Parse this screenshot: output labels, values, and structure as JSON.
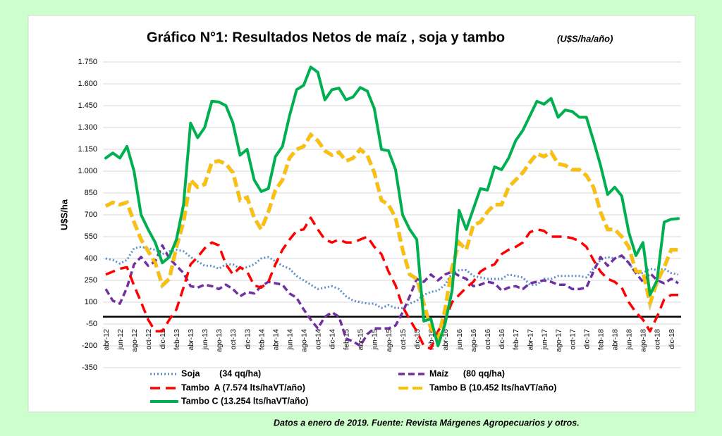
{
  "chart_data": {
    "type": "line",
    "title": "Gráfico N°1: Resultados Netos de maíz , soja y tambo",
    "subtitle": "(U$S/ha/año)",
    "y_label": "U$S/ha",
    "footnote": "Datos a enero de 2019. Fuente: Revista Márgenes Agropecuarios y otros.",
    "categories": [
      "abr-12",
      null,
      "jun-12",
      null,
      "ago-12",
      null,
      "oct-12",
      null,
      "dic-12",
      null,
      "feb-13",
      null,
      "abr-13",
      null,
      "jun-13",
      null,
      "ago-13",
      null,
      "oct-13",
      null,
      "dic-13",
      null,
      "feb-14",
      null,
      "abr-14",
      null,
      "jun-14",
      null,
      "ago-14",
      null,
      "oct-14",
      null,
      "dic-14",
      null,
      "feb-15",
      null,
      "abr-15",
      null,
      "jun-15",
      null,
      "ago-15",
      null,
      "oct-15",
      null,
      "dic-15",
      null,
      "feb-16",
      null,
      "abr-16",
      null,
      "jun-16",
      null,
      "ago-16",
      null,
      "oct-16",
      null,
      "dic-16",
      null,
      "feb-17",
      null,
      "abr-17",
      null,
      "jun-17",
      null,
      "ago-17",
      null,
      "oct-17",
      null,
      "dic-17",
      null,
      "feb-18",
      null,
      "abr-18",
      null,
      "jun-18",
      null,
      "ago-18",
      null,
      "oct-18",
      null,
      "dic-18",
      null
    ],
    "ylim": [
      -350,
      1750
    ],
    "yticks": [
      -350,
      -200,
      -50,
      100,
      250,
      400,
      550,
      700,
      850,
      {
        "value": 1000,
        "label": "1.000"
      },
      {
        "value": 1150,
        "label": "1.150"
      },
      {
        "value": 1300,
        "label": "1.300"
      },
      {
        "value": 1450,
        "label": "1.450"
      },
      {
        "value": 1600,
        "label": "1.600"
      },
      {
        "value": 1750,
        "label": "1.750"
      }
    ],
    "grid": true,
    "legend": "bottom",
    "series": [
      {
        "name": "Soja        (34 qq/ha)",
        "color": "#5b8fc9",
        "dash": "2 3",
        "width": 3,
        "values": [
          400,
          390,
          365,
          390,
          470,
          480,
          470,
          460,
          430,
          450,
          460,
          450,
          410,
          380,
          350,
          350,
          330,
          360,
          360,
          330,
          340,
          360,
          400,
          410,
          380,
          350,
          330,
          280,
          250,
          220,
          190,
          200,
          210,
          190,
          140,
          110,
          100,
          90,
          90,
          60,
          80,
          60,
          60,
          90,
          110,
          150,
          170,
          180,
          220,
          300,
          320,
          320,
          280,
          270,
          260,
          260,
          260,
          290,
          280,
          270,
          220,
          220,
          260,
          260,
          280,
          280,
          280,
          280,
          270,
          330,
          390,
          410,
          400,
          420,
          370,
          300,
          300,
          330,
          320,
          330,
          300,
          290
        ]
      },
      {
        "name": "Maíz      (80 qq/ha)",
        "color": "#7030a0",
        "dash": "9 5",
        "width": 3.5,
        "values": [
          190,
          110,
          90,
          200,
          360,
          410,
          350,
          380,
          490,
          400,
          350,
          300,
          210,
          200,
          220,
          210,
          190,
          220,
          190,
          140,
          170,
          160,
          210,
          240,
          230,
          220,
          160,
          130,
          50,
          -20,
          -80,
          0,
          30,
          0,
          -150,
          -170,
          -200,
          -120,
          -80,
          -80,
          -80,
          -60,
          30,
          140,
          260,
          240,
          290,
          250,
          290,
          310,
          280,
          260,
          210,
          220,
          240,
          230,
          180,
          200,
          210,
          190,
          230,
          240,
          250,
          240,
          220,
          220,
          190,
          190,
          200,
          310,
          410,
          350,
          400,
          420,
          370,
          300,
          240,
          300,
          250,
          230,
          260,
          230
        ]
      },
      {
        "name": "Tambo  A (7.574 lts/haVT/año)",
        "color": "#ff0000",
        "dash": "14 8",
        "width": 3.5,
        "values": [
          290,
          310,
          330,
          340,
          215,
          100,
          -20,
          -100,
          -100,
          -20,
          50,
          200,
          360,
          410,
          470,
          510,
          490,
          360,
          290,
          340,
          310,
          215,
          200,
          240,
          360,
          460,
          530,
          590,
          600,
          680,
          600,
          530,
          510,
          530,
          510,
          510,
          530,
          550,
          480,
          430,
          310,
          215,
          70,
          -20,
          -100,
          -200,
          -220,
          -100,
          -20,
          100,
          150,
          200,
          240,
          310,
          340,
          360,
          430,
          460,
          480,
          510,
          580,
          600,
          590,
          550,
          550,
          550,
          540,
          520,
          480,
          390,
          310,
          260,
          240,
          200,
          100,
          30,
          -20,
          -100,
          0,
          120,
          150,
          150
        ]
      },
      {
        "name": "Tambo B (10.452 lts/haVT/año)",
        "color": "#ffc000",
        "dash": "14 6",
        "width": 4,
        "values": [
          760,
          785,
          770,
          785,
          650,
          530,
          450,
          370,
          215,
          260,
          480,
          650,
          940,
          890,
          910,
          1060,
          1070,
          1050,
          990,
          800,
          820,
          680,
          600,
          720,
          870,
          940,
          1090,
          1150,
          1170,
          1250,
          1210,
          1140,
          1110,
          1130,
          1070,
          1090,
          1150,
          1110,
          990,
          800,
          770,
          680,
          460,
          290,
          260,
          90,
          -80,
          -150,
          50,
          340,
          510,
          460,
          630,
          650,
          720,
          770,
          770,
          890,
          940,
          990,
          1060,
          1120,
          1100,
          1130,
          1050,
          1040,
          1010,
          1010,
          970,
          890,
          720,
          600,
          600,
          550,
          480,
          310,
          310,
          90,
          240,
          340,
          460,
          460
        ]
      },
      {
        "name": "Tambo C (13.254 lts/haVT/año)",
        "color": "#00b050",
        "dash": "none",
        "width": 4,
        "values": [
          1090,
          1125,
          1090,
          1170,
          1000,
          700,
          600,
          510,
          370,
          410,
          530,
          770,
          1330,
          1230,
          1300,
          1480,
          1475,
          1450,
          1330,
          1110,
          1150,
          940,
          860,
          880,
          1100,
          1170,
          1380,
          1560,
          1590,
          1715,
          1680,
          1490,
          1560,
          1570,
          1490,
          1510,
          1575,
          1550,
          1430,
          1150,
          1140,
          1010,
          700,
          600,
          530,
          -30,
          -15,
          -200,
          -50,
          180,
          730,
          600,
          740,
          880,
          870,
          1030,
          1010,
          1090,
          1210,
          1280,
          1380,
          1480,
          1460,
          1500,
          1370,
          1420,
          1410,
          1370,
          1370,
          1210,
          1040,
          840,
          890,
          830,
          580,
          420,
          510,
          150,
          250,
          650,
          670,
          675
        ]
      }
    ]
  }
}
